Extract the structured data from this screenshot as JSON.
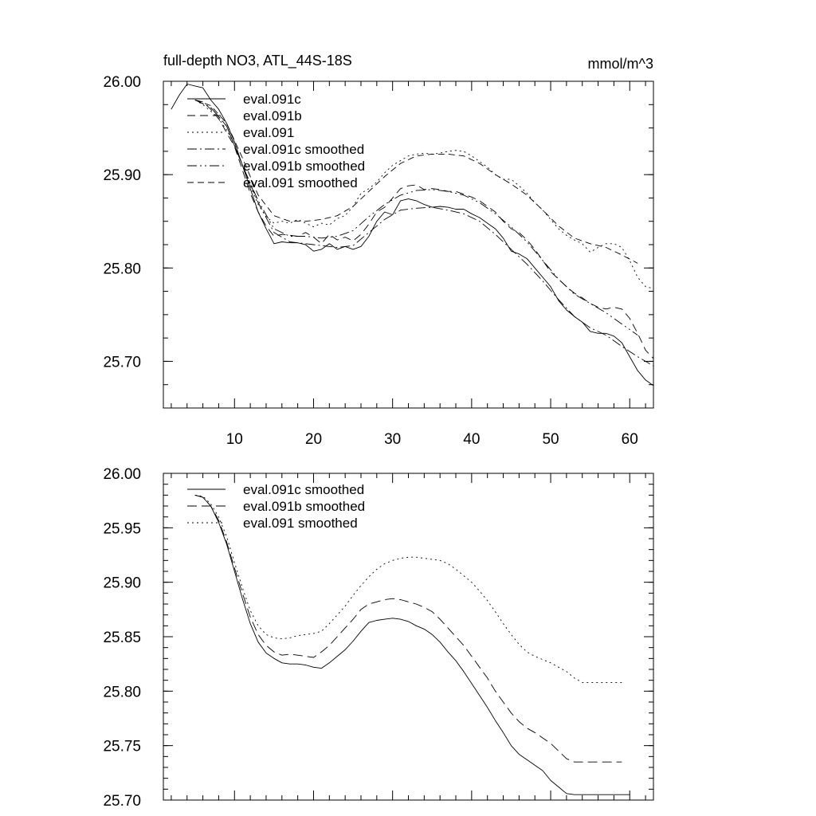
{
  "chart_data": [
    {
      "type": "line",
      "title": "full-depth NO3, ATL_44S-18S",
      "units": "mmol/m^3",
      "xlim": [
        1,
        63
      ],
      "ylim": [
        25.65,
        26.0
      ],
      "x_ticks": [
        10,
        20,
        30,
        40,
        50,
        60
      ],
      "x_tick_labels": [
        "10",
        "20",
        "30",
        "40",
        "50",
        "60"
      ],
      "y_ticks": [
        25.7,
        25.8,
        25.9,
        26.0
      ],
      "y_tick_labels": [
        "25.70",
        "25.80",
        "25.90",
        "26.00"
      ],
      "y_minor_step": 0.025,
      "series": [
        {
          "name": "eval.091c",
          "dash": "solid",
          "stroke_width": 0.9,
          "show_in_legend": true,
          "x": [
            2,
            3,
            4,
            5,
            6,
            7,
            8,
            9,
            10,
            11,
            12,
            13,
            14,
            15,
            16,
            17,
            18,
            19,
            20,
            21,
            22,
            23,
            24,
            25,
            26,
            27,
            28,
            29,
            30,
            31,
            32,
            33,
            34,
            35,
            36,
            37,
            38,
            39,
            40,
            41,
            42,
            43,
            44,
            45,
            46,
            47,
            48,
            49,
            50,
            51,
            52,
            53,
            54,
            55,
            56,
            57,
            58,
            59,
            60,
            61,
            62,
            63
          ],
          "y": [
            25.97,
            25.985,
            25.997,
            25.995,
            25.993,
            25.98,
            25.97,
            25.955,
            25.935,
            25.91,
            25.885,
            25.86,
            25.842,
            25.826,
            25.828,
            25.827,
            25.827,
            25.825,
            25.818,
            25.82,
            25.826,
            25.82,
            25.823,
            25.82,
            25.823,
            25.834,
            25.85,
            25.86,
            25.857,
            25.872,
            25.874,
            25.872,
            25.868,
            25.865,
            25.866,
            25.865,
            25.863,
            25.863,
            25.858,
            25.854,
            25.848,
            25.842,
            25.832,
            25.818,
            25.815,
            25.81,
            25.8,
            25.79,
            25.78,
            25.765,
            25.755,
            25.748,
            25.742,
            25.732,
            25.73,
            25.73,
            25.727,
            25.72,
            25.705,
            25.69,
            25.68,
            25.674
          ]
        },
        {
          "name": "eval.091b",
          "dash": "10 6",
          "stroke_width": 0.9,
          "show_in_legend": true,
          "x": [
            5,
            6,
            7,
            8,
            9,
            10,
            11,
            12,
            13,
            14,
            15,
            16,
            17,
            18,
            19,
            20,
            21,
            22,
            23,
            24,
            25,
            26,
            27,
            28,
            29,
            30,
            31,
            32,
            33,
            34,
            35,
            36,
            37,
            38,
            39,
            40,
            41,
            42,
            43,
            44,
            45,
            46,
            47,
            48,
            49,
            50,
            51,
            52,
            53,
            54,
            55,
            56,
            57,
            58,
            59,
            60,
            61,
            62,
            63
          ],
          "y": [
            25.98,
            25.978,
            25.97,
            25.96,
            25.945,
            25.93,
            25.905,
            25.88,
            25.86,
            25.845,
            25.834,
            25.836,
            25.835,
            25.834,
            25.838,
            25.833,
            25.826,
            25.836,
            25.83,
            25.833,
            25.829,
            25.836,
            25.847,
            25.86,
            25.865,
            25.875,
            25.885,
            25.888,
            25.889,
            25.884,
            25.885,
            25.884,
            25.882,
            25.882,
            25.879,
            25.876,
            25.872,
            25.866,
            25.86,
            25.85,
            25.842,
            25.838,
            25.83,
            25.82,
            25.808,
            25.796,
            25.788,
            25.78,
            25.773,
            25.768,
            25.762,
            25.758,
            25.756,
            25.758,
            25.756,
            25.746,
            25.73,
            25.712,
            25.703
          ]
        },
        {
          "name": "eval.091",
          "dash": "2 4",
          "stroke_width": 0.9,
          "show_in_legend": true,
          "x": [
            5,
            6,
            7,
            8,
            9,
            10,
            11,
            12,
            13,
            14,
            15,
            16,
            17,
            18,
            19,
            20,
            21,
            22,
            23,
            24,
            25,
            26,
            27,
            28,
            29,
            30,
            31,
            32,
            33,
            34,
            35,
            36,
            37,
            38,
            39,
            40,
            41,
            42,
            43,
            44,
            45,
            46,
            47,
            48,
            49,
            50,
            51,
            52,
            53,
            54,
            55,
            56,
            57,
            58,
            59,
            60,
            61,
            62,
            63
          ],
          "y": [
            25.98,
            25.975,
            25.968,
            25.96,
            25.948,
            25.932,
            25.91,
            25.888,
            25.868,
            25.855,
            25.848,
            25.85,
            25.848,
            25.852,
            25.848,
            25.844,
            25.848,
            25.846,
            25.853,
            25.856,
            25.866,
            25.88,
            25.885,
            25.892,
            25.902,
            25.91,
            25.915,
            25.92,
            25.922,
            25.923,
            25.922,
            25.923,
            25.925,
            25.926,
            25.925,
            25.92,
            25.914,
            25.908,
            25.9,
            25.895,
            25.895,
            25.888,
            25.88,
            25.87,
            25.862,
            25.852,
            25.842,
            25.835,
            25.83,
            25.826,
            25.817,
            25.822,
            25.826,
            25.826,
            25.822,
            25.808,
            25.79,
            25.78,
            25.778
          ]
        },
        {
          "name": "eval.091c smoothed",
          "dash": "12 4 2 4",
          "stroke_width": 0.9,
          "show_in_legend": true,
          "x": [
            5,
            7,
            9,
            11,
            13,
            15,
            17,
            19,
            21,
            23,
            25,
            27,
            29,
            31,
            33,
            35,
            37,
            39,
            41,
            43,
            45,
            47,
            49,
            51,
            53,
            55,
            57,
            59,
            61,
            63
          ],
          "y": [
            25.98,
            25.972,
            25.952,
            25.91,
            25.87,
            25.838,
            25.828,
            25.826,
            25.824,
            25.822,
            25.824,
            25.838,
            25.852,
            25.862,
            25.864,
            25.865,
            25.862,
            25.858,
            25.85,
            25.836,
            25.82,
            25.804,
            25.786,
            25.766,
            25.748,
            25.736,
            25.728,
            25.716,
            25.705,
            25.695
          ]
        },
        {
          "name": "eval.091b smoothed",
          "dash": "12 4 2 4 2 4",
          "stroke_width": 0.9,
          "show_in_legend": true,
          "x": [
            5,
            7,
            9,
            11,
            13,
            15,
            17,
            19,
            21,
            23,
            25,
            27,
            29,
            31,
            33,
            35,
            37,
            39,
            41,
            43,
            45,
            47,
            49,
            51,
            53,
            55,
            57,
            59,
            61
          ],
          "y": [
            25.98,
            25.972,
            25.952,
            25.91,
            25.872,
            25.842,
            25.834,
            25.834,
            25.832,
            25.834,
            25.84,
            25.855,
            25.868,
            25.878,
            25.883,
            25.884,
            25.882,
            25.878,
            25.87,
            25.858,
            25.844,
            25.828,
            25.808,
            25.788,
            25.772,
            25.762,
            25.752,
            25.74,
            25.728
          ]
        },
        {
          "name": "eval.091 smoothed",
          "dash": "8 5",
          "stroke_width": 0.9,
          "show_in_legend": true,
          "x": [
            5,
            7,
            9,
            11,
            13,
            15,
            17,
            19,
            21,
            23,
            25,
            27,
            29,
            31,
            33,
            35,
            37,
            39,
            41,
            43,
            45,
            47,
            49,
            51,
            53,
            55,
            57,
            59,
            61
          ],
          "y": [
            25.98,
            25.974,
            25.955,
            25.918,
            25.878,
            25.856,
            25.85,
            25.85,
            25.852,
            25.856,
            25.866,
            25.882,
            25.898,
            25.912,
            25.92,
            25.922,
            25.922,
            25.92,
            25.912,
            25.9,
            25.89,
            25.878,
            25.862,
            25.845,
            25.832,
            25.826,
            25.822,
            25.814,
            25.805
          ]
        }
      ]
    },
    {
      "type": "line",
      "xlim": [
        1,
        63
      ],
      "ylim": [
        25.7,
        26.0
      ],
      "x_ticks": [
        10,
        20,
        30,
        40,
        50,
        60
      ],
      "y_ticks": [
        25.7,
        25.75,
        25.8,
        25.85,
        25.9,
        25.95,
        26.0
      ],
      "y_tick_labels": [
        "25.70",
        "25.75",
        "25.80",
        "25.85",
        "25.90",
        "25.95",
        "26.00"
      ],
      "y_minor_step": 0.01,
      "series": [
        {
          "name": "eval.091c smoothed",
          "dash": "solid",
          "stroke_width": 0.9,
          "x": [
            5,
            6,
            7,
            8,
            9,
            10,
            11,
            12,
            13,
            14,
            15,
            16,
            17,
            18,
            19,
            20,
            21,
            22,
            23,
            24,
            25,
            26,
            27,
            28,
            29,
            30,
            31,
            32,
            33,
            34,
            35,
            36,
            37,
            38,
            39,
            40,
            41,
            42,
            43,
            44,
            45,
            46,
            47,
            48,
            49,
            50,
            51,
            52,
            53,
            54,
            55,
            56,
            57,
            58,
            59,
            60
          ],
          "y": [
            25.98,
            25.978,
            25.97,
            25.955,
            25.935,
            25.91,
            25.885,
            25.862,
            25.845,
            25.835,
            25.83,
            25.826,
            25.825,
            25.825,
            25.824,
            25.822,
            25.821,
            25.826,
            25.832,
            25.838,
            25.846,
            25.855,
            25.863,
            25.865,
            25.866,
            25.867,
            25.866,
            25.864,
            25.86,
            25.857,
            25.852,
            25.845,
            25.836,
            25.828,
            25.818,
            25.807,
            25.796,
            25.785,
            25.773,
            25.762,
            25.75,
            25.742,
            25.737,
            25.732,
            25.727,
            25.718,
            25.712,
            25.706,
            25.705,
            25.705,
            25.705,
            25.705,
            25.705,
            25.705,
            25.705,
            25.705
          ]
        },
        {
          "name": "eval.091b smoothed",
          "dash": "12 6",
          "stroke_width": 0.9,
          "x": [
            5,
            6,
            7,
            8,
            9,
            10,
            11,
            12,
            13,
            14,
            15,
            16,
            17,
            18,
            19,
            20,
            21,
            22,
            23,
            24,
            25,
            26,
            27,
            28,
            29,
            30,
            31,
            32,
            33,
            34,
            35,
            36,
            37,
            38,
            39,
            40,
            41,
            42,
            43,
            44,
            45,
            46,
            47,
            48,
            49,
            50,
            51,
            52,
            53,
            54,
            55,
            56,
            57,
            58,
            59
          ],
          "y": [
            25.98,
            25.978,
            25.97,
            25.957,
            25.937,
            25.913,
            25.89,
            25.868,
            25.852,
            25.842,
            25.836,
            25.833,
            25.834,
            25.833,
            25.832,
            25.831,
            25.836,
            25.842,
            25.85,
            25.858,
            25.866,
            25.875,
            25.88,
            25.882,
            25.884,
            25.885,
            25.884,
            25.882,
            25.88,
            25.877,
            25.873,
            25.866,
            25.858,
            25.85,
            25.842,
            25.832,
            25.822,
            25.812,
            25.8,
            25.79,
            25.78,
            25.772,
            25.766,
            25.762,
            25.757,
            25.752,
            25.745,
            25.738,
            25.735,
            25.735,
            25.735,
            25.735,
            25.735,
            25.735,
            25.735
          ]
        },
        {
          "name": "eval.091 smoothed",
          "dash": "2 4",
          "stroke_width": 0.9,
          "x": [
            5,
            6,
            7,
            8,
            9,
            10,
            11,
            12,
            13,
            14,
            15,
            16,
            17,
            18,
            19,
            20,
            21,
            22,
            23,
            24,
            25,
            26,
            27,
            28,
            29,
            30,
            31,
            32,
            33,
            34,
            35,
            36,
            37,
            38,
            39,
            40,
            41,
            42,
            43,
            44,
            45,
            46,
            47,
            48,
            49,
            50,
            51,
            52,
            53,
            54,
            55,
            56,
            57,
            58,
            59
          ],
          "y": [
            25.98,
            25.979,
            25.972,
            25.96,
            25.942,
            25.918,
            25.895,
            25.874,
            25.86,
            25.852,
            25.849,
            25.848,
            25.849,
            25.851,
            25.852,
            25.853,
            25.855,
            25.862,
            25.87,
            25.878,
            25.888,
            25.897,
            25.905,
            25.912,
            25.917,
            25.92,
            25.922,
            25.923,
            25.923,
            25.922,
            25.921,
            25.92,
            25.917,
            25.912,
            25.906,
            25.9,
            25.892,
            25.883,
            25.873,
            25.862,
            25.852,
            25.843,
            25.836,
            25.832,
            25.829,
            25.826,
            25.822,
            25.818,
            25.812,
            25.808,
            25.808,
            25.808,
            25.808,
            25.808,
            25.808
          ]
        }
      ]
    }
  ]
}
